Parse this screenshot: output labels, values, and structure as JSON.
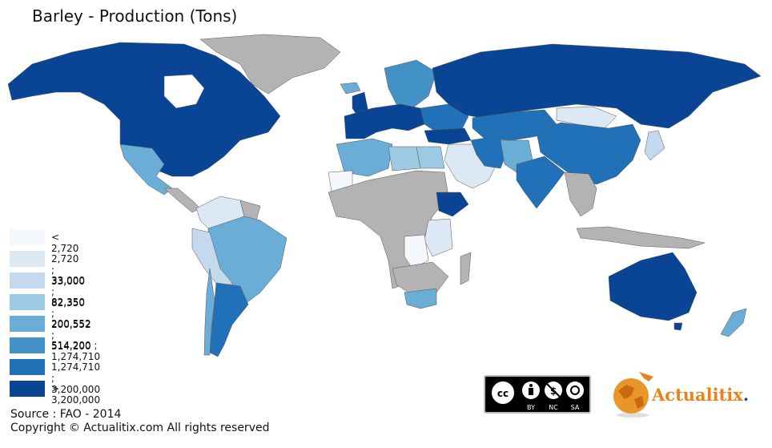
{
  "title": "Barley - Production (Tons)",
  "legend": {
    "items": [
      {
        "label": "< 2,720",
        "color": "#f4f8fd"
      },
      {
        "label": "2,720 ; 33,000",
        "color": "#dde8f5"
      },
      {
        "label": "33,000 ; 82,350",
        "color": "#c4d9ee"
      },
      {
        "label": "82,350 ; 200,552",
        "color": "#9ec9e3"
      },
      {
        "label": "200,552 ; 514,200",
        "color": "#6aadd7"
      },
      {
        "label": "514,200 ; 1,274,710",
        "color": "#4292c8"
      },
      {
        "label": "1,274,710 ; 3,200,000",
        "color": "#2171b8"
      },
      {
        "label": "> 3,200,000",
        "color": "#0a4595"
      }
    ],
    "no_data_color": "#b3b3b3"
  },
  "source": "Source : FAO - 2014",
  "copyright": "Copyright © Actualitix.com All rights reserved",
  "cc": {
    "labels": [
      "BY",
      "NC",
      "SA"
    ]
  },
  "brand": {
    "name": "Actualitix",
    "dot": ".",
    "name_color": "#e8831a",
    "dot_color": "#1e4d94"
  }
}
